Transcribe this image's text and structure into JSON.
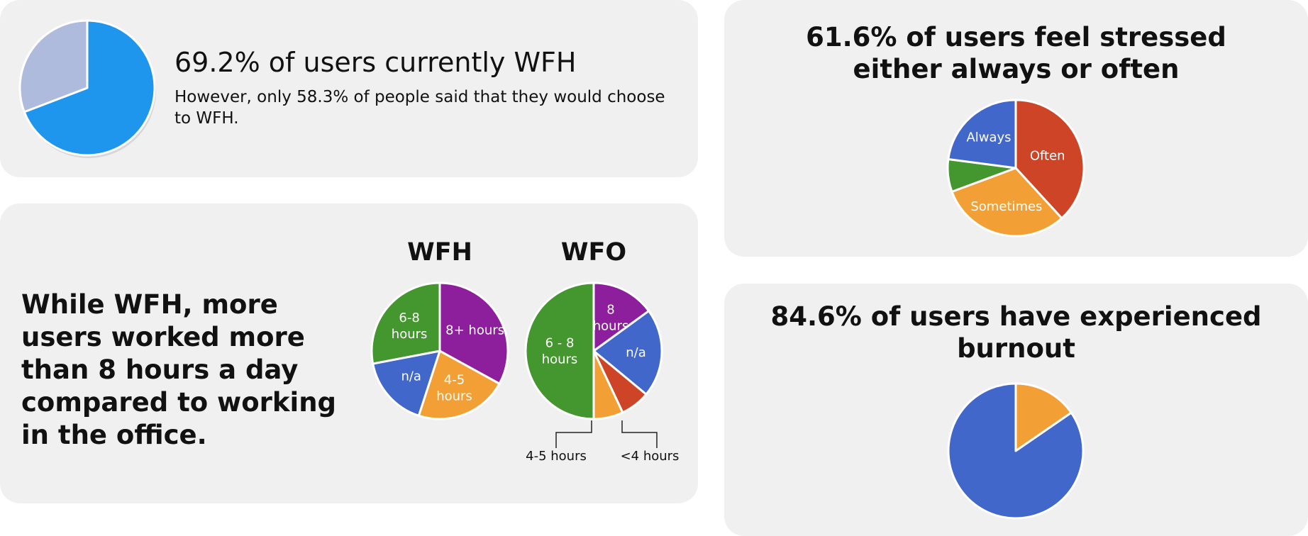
{
  "cards": {
    "wfh_share": {
      "title": "69.2% of users currently WFH",
      "subtitle": "However, only 58.3% of people said that they would choose to WFH."
    },
    "hours": {
      "title": "While WFH, more users worked more than 8 hours a day compared to working in the office."
    },
    "stress": {
      "title": "61.6% of users feel stressed either always or often"
    },
    "burnout": {
      "title": "84.6% of users have experienced burnout"
    }
  },
  "chart_data": [
    {
      "id": "wfh-share",
      "type": "pie",
      "title": "",
      "slices": [
        {
          "label": "",
          "value": 69.2,
          "color": "#1e96ee"
        },
        {
          "label": "",
          "value": 30.8,
          "color": "#aebbdd"
        }
      ]
    },
    {
      "id": "wfh-hours",
      "type": "pie",
      "title": "WFH",
      "slices": [
        {
          "label": "8+ hours",
          "value": 33,
          "color": "#8d1e9c"
        },
        {
          "label": "4-5 hours",
          "value": 22,
          "color": "#f2a035"
        },
        {
          "label": "n/a",
          "value": 17,
          "color": "#4067c9"
        },
        {
          "label": "6-8 hours",
          "value": 28,
          "color": "#44962e"
        }
      ]
    },
    {
      "id": "wfo-hours",
      "type": "pie",
      "title": "WFO",
      "slices": [
        {
          "label": "8 hours",
          "value": 15,
          "color": "#8d1e9c"
        },
        {
          "label": "n/a",
          "value": 21,
          "color": "#4067c9"
        },
        {
          "label": "<4 hours",
          "value": 7,
          "color": "#cd4526"
        },
        {
          "label": "4-5 hours",
          "value": 7,
          "color": "#f2a035"
        },
        {
          "label": "6 - 8 hours",
          "value": 50,
          "color": "#44962e"
        }
      ]
    },
    {
      "id": "stress",
      "type": "pie",
      "title": "",
      "slices": [
        {
          "label": "Often",
          "value": 38.5,
          "color": "#cd4526"
        },
        {
          "label": "Sometimes",
          "value": 31.4,
          "color": "#f2a035"
        },
        {
          "label": "",
          "value": 7.8,
          "color": "#44962e"
        },
        {
          "label": "Always",
          "value": 23.1,
          "color": "#4067c9"
        }
      ]
    },
    {
      "id": "burnout",
      "type": "pie",
      "title": "",
      "slices": [
        {
          "label": "",
          "value": 15.4,
          "color": "#f2a035"
        },
        {
          "label": "",
          "value": 84.6,
          "color": "#4067c9"
        }
      ]
    }
  ]
}
